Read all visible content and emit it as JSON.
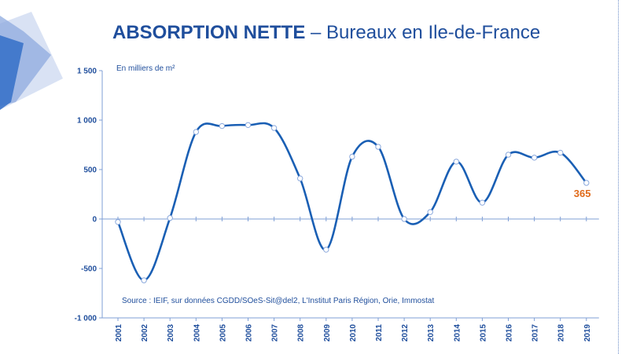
{
  "title": {
    "bold": "ABSORPTION NETTE",
    "rest": " – Bureaux en Ile-de-France"
  },
  "unit_note": "En milliers de m²",
  "source": "Source : IEIF, sur données CGDD/SOeS-Sit@del2, L'Institut Paris Région, Orie, Immostat",
  "colors": {
    "line": "#1a5fb4",
    "title": "#1f4e9c",
    "highlight": "#e06a1a"
  },
  "chart_data": {
    "type": "line",
    "categories": [
      "2001",
      "2002",
      "2003",
      "2004",
      "2005",
      "2006",
      "2007",
      "2008",
      "2009",
      "2010",
      "2011",
      "2012",
      "2013",
      "2014",
      "2015",
      "2016",
      "2017",
      "2018",
      "2019"
    ],
    "values": [
      -30,
      -620,
      10,
      880,
      940,
      950,
      920,
      410,
      -310,
      630,
      730,
      0,
      70,
      580,
      165,
      650,
      620,
      670,
      365
    ],
    "yticks": [
      1500,
      1000,
      500,
      0,
      -500,
      -1000
    ],
    "ytick_labels": [
      "1 500",
      "1 000",
      "500",
      "0",
      "-500",
      "-1 000"
    ],
    "ylim": [
      -1000,
      1500
    ],
    "smooth": true,
    "grid": false,
    "last_label": "365"
  }
}
